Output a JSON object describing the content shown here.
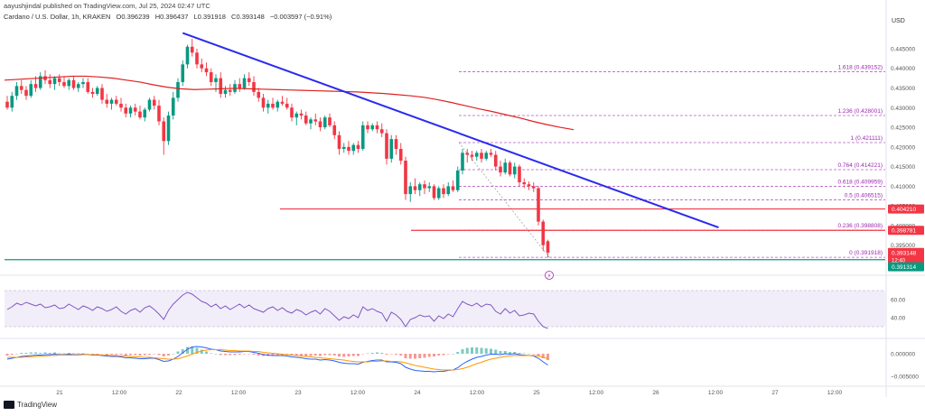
{
  "header": {
    "publisher": "aayushjindal published on TradingView.com, Jul 25, 2024 02:47 UTC",
    "symbol": "Cardano / U.S. Dollar, 1h, KRAKEN",
    "open": "O0.396239",
    "high": "H0.396437",
    "low": "L0.391918",
    "close": "C0.393148",
    "change": "−0.003597 (−0.91%)"
  },
  "currency": "USD",
  "footer": {
    "brand": "TradingView"
  },
  "colors": {
    "up": "#089981",
    "down": "#f23645",
    "trend": "#2a2af0",
    "ma": "#e02020",
    "fib": "#9c27b0",
    "rsi": "#7e57c2"
  },
  "chart_data": {
    "type": "candlestick",
    "yrange": [
      0.3885,
      0.4505
    ],
    "y_ticks": [
      "0.445000",
      "0.440000",
      "0.435000",
      "0.430000",
      "0.425000",
      "0.420000",
      "0.415000",
      "0.410000",
      "0.405000",
      "0.400000",
      "0.395000"
    ],
    "x_ticks": [
      "21",
      "12:00",
      "22",
      "12:00",
      "23",
      "12:00",
      "24",
      "12:00",
      "25",
      "12:00",
      "26",
      "12:00",
      "27",
      "12:00"
    ],
    "candles": [
      [
        0.4315,
        0.433,
        0.4295,
        0.43
      ],
      [
        0.43,
        0.434,
        0.429,
        0.433
      ],
      [
        0.433,
        0.4365,
        0.432,
        0.4355
      ],
      [
        0.4355,
        0.437,
        0.4335,
        0.4345
      ],
      [
        0.4345,
        0.4355,
        0.432,
        0.433
      ],
      [
        0.433,
        0.437,
        0.4325,
        0.436
      ],
      [
        0.436,
        0.438,
        0.434,
        0.435
      ],
      [
        0.435,
        0.439,
        0.4345,
        0.438
      ],
      [
        0.438,
        0.4395,
        0.436,
        0.437
      ],
      [
        0.437,
        0.4385,
        0.435,
        0.436
      ],
      [
        0.436,
        0.438,
        0.4345,
        0.4375
      ],
      [
        0.4375,
        0.4385,
        0.4355,
        0.4365
      ],
      [
        0.4365,
        0.438,
        0.435,
        0.4355
      ],
      [
        0.4355,
        0.4375,
        0.4345,
        0.437
      ],
      [
        0.437,
        0.438,
        0.4345,
        0.435
      ],
      [
        0.435,
        0.4365,
        0.434,
        0.436
      ],
      [
        0.436,
        0.4375,
        0.435,
        0.4365
      ],
      [
        0.4365,
        0.4375,
        0.4335,
        0.434
      ],
      [
        0.434,
        0.435,
        0.4325,
        0.4335
      ],
      [
        0.4335,
        0.4355,
        0.433,
        0.435
      ],
      [
        0.435,
        0.436,
        0.431,
        0.432
      ],
      [
        0.432,
        0.4335,
        0.43,
        0.431
      ],
      [
        0.431,
        0.4325,
        0.4295,
        0.432
      ],
      [
        0.432,
        0.433,
        0.4305,
        0.431
      ],
      [
        0.431,
        0.4325,
        0.429,
        0.43
      ],
      [
        0.43,
        0.431,
        0.4275,
        0.4285
      ],
      [
        0.4285,
        0.4305,
        0.4275,
        0.43
      ],
      [
        0.43,
        0.431,
        0.428,
        0.429
      ],
      [
        0.429,
        0.4305,
        0.427,
        0.4275
      ],
      [
        0.4275,
        0.43,
        0.4265,
        0.4295
      ],
      [
        0.4295,
        0.4325,
        0.429,
        0.432
      ],
      [
        0.432,
        0.433,
        0.4295,
        0.4305
      ],
      [
        0.4305,
        0.432,
        0.4255,
        0.4265
      ],
      [
        0.4265,
        0.4275,
        0.418,
        0.4215
      ],
      [
        0.4215,
        0.429,
        0.4205,
        0.428
      ],
      [
        0.428,
        0.434,
        0.427,
        0.4325
      ],
      [
        0.4325,
        0.4375,
        0.4315,
        0.4365
      ],
      [
        0.4365,
        0.442,
        0.4355,
        0.441
      ],
      [
        0.441,
        0.446,
        0.44,
        0.4455
      ],
      [
        0.4455,
        0.4475,
        0.443,
        0.444
      ],
      [
        0.444,
        0.445,
        0.44,
        0.441
      ],
      [
        0.441,
        0.4425,
        0.439,
        0.44
      ],
      [
        0.44,
        0.4415,
        0.438,
        0.439
      ],
      [
        0.439,
        0.44,
        0.4355,
        0.4365
      ],
      [
        0.4365,
        0.4385,
        0.434,
        0.4375
      ],
      [
        0.4375,
        0.439,
        0.4325,
        0.4335
      ],
      [
        0.4335,
        0.4355,
        0.4325,
        0.4345
      ],
      [
        0.4345,
        0.436,
        0.433,
        0.434
      ],
      [
        0.434,
        0.437,
        0.4335,
        0.436
      ],
      [
        0.436,
        0.4375,
        0.434,
        0.435
      ],
      [
        0.435,
        0.4385,
        0.4345,
        0.4375
      ],
      [
        0.4375,
        0.439,
        0.4355,
        0.4365
      ],
      [
        0.4365,
        0.438,
        0.433,
        0.434
      ],
      [
        0.434,
        0.435,
        0.4315,
        0.4325
      ],
      [
        0.4325,
        0.4335,
        0.429,
        0.43
      ],
      [
        0.43,
        0.432,
        0.4285,
        0.431
      ],
      [
        0.431,
        0.4325,
        0.4295,
        0.43
      ],
      [
        0.43,
        0.432,
        0.429,
        0.4315
      ],
      [
        0.4315,
        0.433,
        0.4305,
        0.431
      ],
      [
        0.431,
        0.4325,
        0.4295,
        0.43
      ],
      [
        0.43,
        0.431,
        0.4265,
        0.4275
      ],
      [
        0.4275,
        0.429,
        0.4255,
        0.4285
      ],
      [
        0.4285,
        0.4295,
        0.427,
        0.428
      ],
      [
        0.428,
        0.429,
        0.4255,
        0.426
      ],
      [
        0.426,
        0.4275,
        0.4245,
        0.427
      ],
      [
        0.427,
        0.4285,
        0.4255,
        0.4265
      ],
      [
        0.4265,
        0.4275,
        0.424,
        0.425
      ],
      [
        0.425,
        0.428,
        0.4245,
        0.4275
      ],
      [
        0.4275,
        0.4285,
        0.425,
        0.4255
      ],
      [
        0.4255,
        0.4265,
        0.422,
        0.423
      ],
      [
        0.423,
        0.424,
        0.418,
        0.4195
      ],
      [
        0.4195,
        0.421,
        0.4185,
        0.42
      ],
      [
        0.42,
        0.4215,
        0.418,
        0.419
      ],
      [
        0.419,
        0.421,
        0.418,
        0.4205
      ],
      [
        0.4205,
        0.4215,
        0.4185,
        0.4195
      ],
      [
        0.4195,
        0.4265,
        0.419,
        0.4255
      ],
      [
        0.4255,
        0.4265,
        0.4235,
        0.4245
      ],
      [
        0.4245,
        0.426,
        0.424,
        0.4255
      ],
      [
        0.4255,
        0.4265,
        0.4235,
        0.4245
      ],
      [
        0.4245,
        0.426,
        0.4225,
        0.4235
      ],
      [
        0.4235,
        0.4245,
        0.4155,
        0.417
      ],
      [
        0.417,
        0.423,
        0.416,
        0.422
      ],
      [
        0.422,
        0.423,
        0.418,
        0.4195
      ],
      [
        0.4195,
        0.421,
        0.4155,
        0.4165
      ],
      [
        0.4165,
        0.4175,
        0.4065,
        0.408
      ],
      [
        0.408,
        0.411,
        0.406,
        0.41
      ],
      [
        0.41,
        0.412,
        0.408,
        0.409
      ],
      [
        0.409,
        0.411,
        0.4075,
        0.4105
      ],
      [
        0.4105,
        0.4115,
        0.408,
        0.4095
      ],
      [
        0.4095,
        0.411,
        0.4085,
        0.41
      ],
      [
        0.41,
        0.4105,
        0.4065,
        0.407
      ],
      [
        0.407,
        0.41,
        0.4065,
        0.4095
      ],
      [
        0.4095,
        0.4105,
        0.407,
        0.408
      ],
      [
        0.408,
        0.411,
        0.4075,
        0.41
      ],
      [
        0.41,
        0.4115,
        0.4085,
        0.409
      ],
      [
        0.409,
        0.415,
        0.4085,
        0.414
      ],
      [
        0.414,
        0.4195,
        0.413,
        0.4185
      ],
      [
        0.4185,
        0.4195,
        0.416,
        0.418
      ],
      [
        0.418,
        0.419,
        0.4165,
        0.4175
      ],
      [
        0.4175,
        0.419,
        0.4165,
        0.4185
      ],
      [
        0.4185,
        0.4195,
        0.416,
        0.417
      ],
      [
        0.417,
        0.419,
        0.4165,
        0.4185
      ],
      [
        0.4185,
        0.4195,
        0.4175,
        0.418
      ],
      [
        0.418,
        0.419,
        0.414,
        0.415
      ],
      [
        0.415,
        0.4165,
        0.4125,
        0.4135
      ],
      [
        0.4135,
        0.417,
        0.413,
        0.416
      ],
      [
        0.416,
        0.4165,
        0.4125,
        0.413
      ],
      [
        0.413,
        0.416,
        0.412,
        0.415
      ],
      [
        0.415,
        0.4155,
        0.41,
        0.411
      ],
      [
        0.411,
        0.412,
        0.4095,
        0.4105
      ],
      [
        0.4105,
        0.4112,
        0.409,
        0.41
      ],
      [
        0.41,
        0.411,
        0.4085,
        0.4095
      ],
      [
        0.4095,
        0.41,
        0.4,
        0.401
      ],
      [
        0.401,
        0.4015,
        0.3935,
        0.395
      ],
      [
        0.396,
        0.3964,
        0.3919,
        0.3931
      ]
    ],
    "ma_200": [
      0.437,
      0.4372,
      0.4374,
      0.4376,
      0.4378,
      0.438,
      0.438,
      0.4378,
      0.4375,
      0.437,
      0.4365,
      0.4358,
      0.4352,
      0.4348,
      0.4346,
      0.4347,
      0.4348,
      0.4349,
      0.4348,
      0.4347,
      0.4346,
      0.4345,
      0.4344,
      0.4343,
      0.4342,
      0.4341,
      0.434,
      0.4338,
      0.4336,
      0.4333,
      0.433,
      0.4326,
      0.432,
      0.4313,
      0.4305,
      0.4297,
      0.429,
      0.4282,
      0.4274,
      0.4265,
      0.4257,
      0.425,
      0.4244
    ],
    "trendline": {
      "from_candle": 37,
      "from_value": 0.449,
      "to_candle": 150,
      "to_value": 0.3995
    },
    "horizontal_levels": [
      {
        "label": "0.404210",
        "value": 0.40421,
        "color": "#f23645"
      },
      {
        "label": "0.398781",
        "value": 0.398781,
        "color": "#f23645"
      },
      {
        "label": "0.391314",
        "value": 0.391314,
        "color": "#089981"
      }
    ],
    "fibonacci": [
      {
        "ratio": "1.618",
        "price": "0.439152",
        "value": 0.439152
      },
      {
        "ratio": "1.236",
        "price": "0.428001",
        "value": 0.428001
      },
      {
        "ratio": "1",
        "price": "0.421111",
        "value": 0.421111
      },
      {
        "ratio": "0.764",
        "price": "0.414221",
        "value": 0.414221
      },
      {
        "ratio": "0.618",
        "price": "0.409959",
        "value": 0.409959
      },
      {
        "ratio": "0.5",
        "price": "0.406515",
        "value": 0.406515
      },
      {
        "ratio": "0.236",
        "price": "0.398808",
        "value": 0.398808
      },
      {
        "ratio": "0",
        "price": "0.391918",
        "value": 0.391918
      }
    ],
    "price_labels": {
      "current": "0.393148",
      "countdown": "12:40",
      "level_a": "0.404210",
      "level_b": "0.398781",
      "level_c": "0.391314"
    },
    "rsi": {
      "range": [
        20,
        80
      ],
      "ticks": [
        "60.00",
        "40.00"
      ],
      "band": [
        30,
        70
      ],
      "values": [
        49,
        52,
        56,
        54,
        57,
        55,
        53,
        55,
        51,
        52,
        54,
        50,
        51,
        55,
        52,
        49,
        53,
        51,
        48,
        52,
        50,
        47,
        49,
        52,
        47,
        44,
        48,
        50,
        46,
        51,
        53,
        49,
        44,
        38,
        48,
        55,
        60,
        65,
        68,
        66,
        62,
        58,
        56,
        52,
        55,
        50,
        53,
        49,
        52,
        55,
        51,
        54,
        50,
        48,
        46,
        50,
        52,
        48,
        51,
        47,
        45,
        49,
        47,
        43,
        46,
        48,
        44,
        50,
        47,
        42,
        37,
        41,
        39,
        43,
        40,
        52,
        48,
        50,
        47,
        45,
        36,
        46,
        43,
        38,
        30,
        38,
        40,
        43,
        41,
        42,
        36,
        42,
        39,
        44,
        41,
        50,
        58,
        55,
        53,
        56,
        52,
        55,
        54,
        47,
        44,
        50,
        45,
        48,
        42,
        43,
        45,
        44,
        36,
        30,
        28
      ]
    },
    "macd": {
      "ticks": [
        "0.000000",
        "−0.005000"
      ],
      "macd_line": [
        -0.0012,
        -0.001,
        -0.0008,
        -0.0006,
        -0.0005,
        -0.0004,
        -0.0003,
        -0.0003,
        -0.0002,
        -0.0002,
        -0.0001,
        -0.0002,
        -0.0002,
        -0.0001,
        -0.0002,
        -0.0002,
        -0.0001,
        -0.0002,
        -0.0003,
        -0.0003,
        -0.0004,
        -0.0005,
        -0.0006,
        -0.0006,
        -0.0007,
        -0.0009,
        -0.0009,
        -0.001,
        -0.0011,
        -0.0011,
        -0.001,
        -0.001,
        -0.0013,
        -0.0017,
        -0.0016,
        -0.0012,
        -0.0006,
        0.0002,
        0.001,
        0.0015,
        0.0016,
        0.0015,
        0.0013,
        0.001,
        0.0009,
        0.0006,
        0.0005,
        0.0004,
        0.0004,
        0.0004,
        0.0005,
        0.0005,
        0.0003,
        0.0001,
        -0.0002,
        -0.0003,
        -0.0004,
        -0.0004,
        -0.0004,
        -0.0005,
        -0.0007,
        -0.0008,
        -0.0009,
        -0.0011,
        -0.0012,
        -0.0012,
        -0.0014,
        -0.0013,
        -0.0014,
        -0.0016,
        -0.0019,
        -0.0021,
        -0.0022,
        -0.0022,
        -0.0023,
        -0.0019,
        -0.0017,
        -0.0015,
        -0.0014,
        -0.0014,
        -0.0018,
        -0.0018,
        -0.0019,
        -0.0022,
        -0.003,
        -0.0034,
        -0.0037,
        -0.0038,
        -0.0039,
        -0.0039,
        -0.004,
        -0.0039,
        -0.0039,
        -0.0037,
        -0.0036,
        -0.0031,
        -0.0023,
        -0.0017,
        -0.0012,
        -0.0008,
        -0.0006,
        -0.0003,
        -0.0001,
        -0.0001,
        -0.0002,
        0.0,
        -0.0001,
        0.0,
        -0.0002,
        -0.0003,
        -0.0004,
        -0.0005,
        -0.001,
        -0.0018,
        -0.0025
      ],
      "signal_line": [
        -0.0008,
        -0.0008,
        -0.0008,
        -0.0008,
        -0.0007,
        -0.0007,
        -0.0006,
        -0.0005,
        -0.0005,
        -0.0004,
        -0.0004,
        -0.0003,
        -0.0003,
        -0.0003,
        -0.0003,
        -0.0003,
        -0.0002,
        -0.0002,
        -0.0002,
        -0.0002,
        -0.0003,
        -0.0003,
        -0.0004,
        -0.0004,
        -0.0005,
        -0.0005,
        -0.0006,
        -0.0007,
        -0.0007,
        -0.0008,
        -0.0008,
        -0.0009,
        -0.001,
        -0.0011,
        -0.0012,
        -0.0012,
        -0.0011,
        -0.0008,
        -0.0005,
        -0.0001,
        0.0003,
        0.0006,
        0.0008,
        0.0009,
        0.0009,
        0.0009,
        0.0008,
        0.0007,
        0.0007,
        0.0006,
        0.0006,
        0.0006,
        0.0005,
        0.0005,
        0.0003,
        0.0002,
        0.0001,
        0.0,
        -0.0001,
        -0.0002,
        -0.0003,
        -0.0004,
        -0.0005,
        -0.0006,
        -0.0007,
        -0.0008,
        -0.0009,
        -0.001,
        -0.0011,
        -0.0012,
        -0.0013,
        -0.0014,
        -0.0016,
        -0.0017,
        -0.0018,
        -0.0018,
        -0.0018,
        -0.0017,
        -0.0017,
        -0.0016,
        -0.0016,
        -0.0017,
        -0.0017,
        -0.0018,
        -0.002,
        -0.0023,
        -0.0026,
        -0.0028,
        -0.003,
        -0.0032,
        -0.0034,
        -0.0035,
        -0.0036,
        -0.0036,
        -0.0036,
        -0.0035,
        -0.0033,
        -0.003,
        -0.0026,
        -0.0022,
        -0.0019,
        -0.0015,
        -0.0012,
        -0.001,
        -0.0008,
        -0.0006,
        -0.0005,
        -0.0004,
        -0.0004,
        -0.0004,
        -0.0004,
        -0.0004,
        -0.0005,
        -0.0008,
        -0.0011
      ]
    }
  }
}
